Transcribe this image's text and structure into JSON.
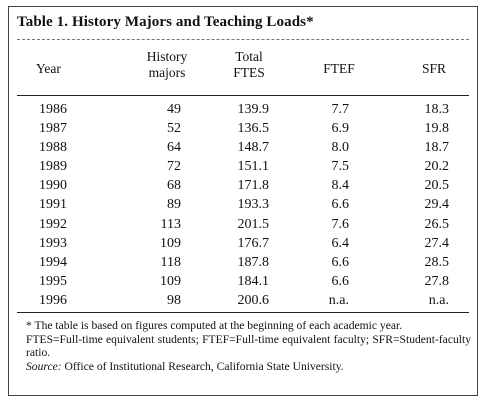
{
  "title": "Table 1. History Majors and Teaching Loads*",
  "headers": {
    "year": "Year",
    "majors_line1": "History",
    "majors_line2": "majors",
    "ftes_line1": "Total",
    "ftes_line2": "FTES",
    "ftef": "FTEF",
    "sfr": "SFR"
  },
  "rows": [
    {
      "year": "1986",
      "majors": "49",
      "ftes": "139.9",
      "ftef": "7.7",
      "sfr": "18.3"
    },
    {
      "year": "1987",
      "majors": "52",
      "ftes": "136.5",
      "ftef": "6.9",
      "sfr": "19.8"
    },
    {
      "year": "1988",
      "majors": "64",
      "ftes": "148.7",
      "ftef": "8.0",
      "sfr": "18.7"
    },
    {
      "year": "1989",
      "majors": "72",
      "ftes": "151.1",
      "ftef": "7.5",
      "sfr": "20.2"
    },
    {
      "year": "1990",
      "majors": "68",
      "ftes": "171.8",
      "ftef": "8.4",
      "sfr": "20.5"
    },
    {
      "year": "1991",
      "majors": "89",
      "ftes": "193.3",
      "ftef": "6.6",
      "sfr": "29.4"
    },
    {
      "year": "1992",
      "majors": "113",
      "ftes": "201.5",
      "ftef": "7.6",
      "sfr": "26.5"
    },
    {
      "year": "1993",
      "majors": "109",
      "ftes": "176.7",
      "ftef": "6.4",
      "sfr": "27.4"
    },
    {
      "year": "1994",
      "majors": "118",
      "ftes": "187.8",
      "ftef": "6.6",
      "sfr": "28.5"
    },
    {
      "year": "1995",
      "majors": "109",
      "ftes": "184.1",
      "ftef": "6.6",
      "sfr": "27.8"
    },
    {
      "year": "1996",
      "majors": "98",
      "ftes": "200.6",
      "ftef": "n.a.",
      "sfr": "n.a."
    }
  ],
  "notes": {
    "footnote": "* The table is based on figures computed at the beginning of each academic year.",
    "abbrev": "FTES=Full-time equivalent students; FTEF=Full-time equivalent faculty; SFR=Student-faculty ratio.",
    "source_label": "Source:",
    "source_text": " Office of Institutional Research, California State University."
  }
}
